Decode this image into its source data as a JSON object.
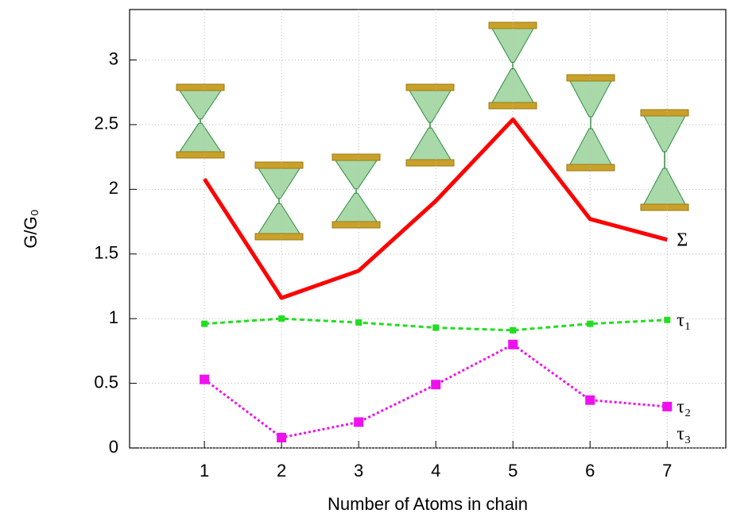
{
  "chart_data": {
    "type": "line",
    "x_label": "Number of Atoms in chain",
    "y_label": "G/G₀",
    "x": [
      1,
      2,
      3,
      4,
      5,
      6,
      7
    ],
    "xlim": [
      0.03,
      7.76
    ],
    "xticks": [
      1,
      2,
      3,
      4,
      5,
      6,
      7
    ],
    "ylim": [
      0,
      3.39
    ],
    "yticks": [
      0,
      0.5,
      1,
      1.5,
      2,
      2.5,
      3
    ],
    "grid": true,
    "series": [
      {
        "name": "Σ",
        "color": "#ff0000",
        "style": "solid",
        "values": [
          2.08,
          1.16,
          1.37,
          1.91,
          2.54,
          1.77,
          1.61
        ]
      },
      {
        "name": "τ₁",
        "color": "#22dd22",
        "style": "dashed",
        "values": [
          0.96,
          1.0,
          0.97,
          0.93,
          0.91,
          0.96,
          0.99
        ]
      },
      {
        "name": "τ₂",
        "color": "#ee11ee",
        "style": "dotted",
        "values": [
          0.53,
          0.08,
          0.2,
          0.49,
          0.8,
          0.37,
          0.32
        ]
      }
    ],
    "annotations": [
      "τ₃"
    ]
  }
}
